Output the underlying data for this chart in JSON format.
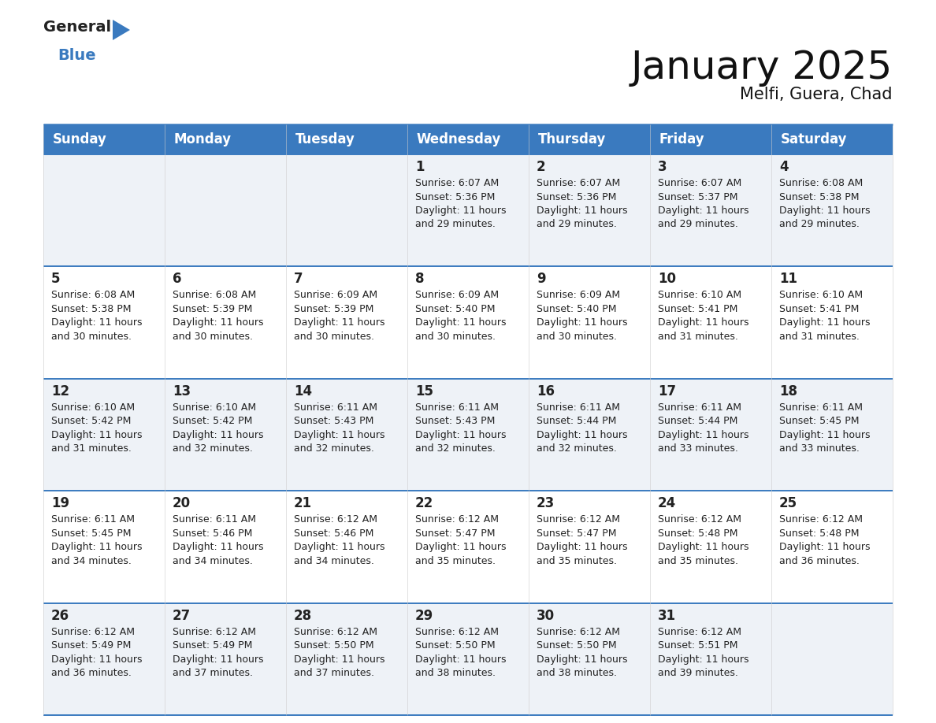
{
  "title": "January 2025",
  "subtitle": "Melfi, Guera, Chad",
  "header_color": "#3a7abf",
  "header_text_color": "#ffffff",
  "cell_bg_even": "#eef2f7",
  "cell_bg_odd": "#ffffff",
  "border_color": "#3a7abf",
  "day_names": [
    "Sunday",
    "Monday",
    "Tuesday",
    "Wednesday",
    "Thursday",
    "Friday",
    "Saturday"
  ],
  "weeks": [
    [
      {
        "day": "",
        "sunrise": "",
        "sunset": "",
        "daylight": ""
      },
      {
        "day": "",
        "sunrise": "",
        "sunset": "",
        "daylight": ""
      },
      {
        "day": "",
        "sunrise": "",
        "sunset": "",
        "daylight": ""
      },
      {
        "day": "1",
        "sunrise": "6:07 AM",
        "sunset": "5:36 PM",
        "daylight": "11 hours and 29 minutes."
      },
      {
        "day": "2",
        "sunrise": "6:07 AM",
        "sunset": "5:36 PM",
        "daylight": "11 hours and 29 minutes."
      },
      {
        "day": "3",
        "sunrise": "6:07 AM",
        "sunset": "5:37 PM",
        "daylight": "11 hours and 29 minutes."
      },
      {
        "day": "4",
        "sunrise": "6:08 AM",
        "sunset": "5:38 PM",
        "daylight": "11 hours and 29 minutes."
      }
    ],
    [
      {
        "day": "5",
        "sunrise": "6:08 AM",
        "sunset": "5:38 PM",
        "daylight": "11 hours and 30 minutes."
      },
      {
        "day": "6",
        "sunrise": "6:08 AM",
        "sunset": "5:39 PM",
        "daylight": "11 hours and 30 minutes."
      },
      {
        "day": "7",
        "sunrise": "6:09 AM",
        "sunset": "5:39 PM",
        "daylight": "11 hours and 30 minutes."
      },
      {
        "day": "8",
        "sunrise": "6:09 AM",
        "sunset": "5:40 PM",
        "daylight": "11 hours and 30 minutes."
      },
      {
        "day": "9",
        "sunrise": "6:09 AM",
        "sunset": "5:40 PM",
        "daylight": "11 hours and 30 minutes."
      },
      {
        "day": "10",
        "sunrise": "6:10 AM",
        "sunset": "5:41 PM",
        "daylight": "11 hours and 31 minutes."
      },
      {
        "day": "11",
        "sunrise": "6:10 AM",
        "sunset": "5:41 PM",
        "daylight": "11 hours and 31 minutes."
      }
    ],
    [
      {
        "day": "12",
        "sunrise": "6:10 AM",
        "sunset": "5:42 PM",
        "daylight": "11 hours and 31 minutes."
      },
      {
        "day": "13",
        "sunrise": "6:10 AM",
        "sunset": "5:42 PM",
        "daylight": "11 hours and 32 minutes."
      },
      {
        "day": "14",
        "sunrise": "6:11 AM",
        "sunset": "5:43 PM",
        "daylight": "11 hours and 32 minutes."
      },
      {
        "day": "15",
        "sunrise": "6:11 AM",
        "sunset": "5:43 PM",
        "daylight": "11 hours and 32 minutes."
      },
      {
        "day": "16",
        "sunrise": "6:11 AM",
        "sunset": "5:44 PM",
        "daylight": "11 hours and 32 minutes."
      },
      {
        "day": "17",
        "sunrise": "6:11 AM",
        "sunset": "5:44 PM",
        "daylight": "11 hours and 33 minutes."
      },
      {
        "day": "18",
        "sunrise": "6:11 AM",
        "sunset": "5:45 PM",
        "daylight": "11 hours and 33 minutes."
      }
    ],
    [
      {
        "day": "19",
        "sunrise": "6:11 AM",
        "sunset": "5:45 PM",
        "daylight": "11 hours and 34 minutes."
      },
      {
        "day": "20",
        "sunrise": "6:11 AM",
        "sunset": "5:46 PM",
        "daylight": "11 hours and 34 minutes."
      },
      {
        "day": "21",
        "sunrise": "6:12 AM",
        "sunset": "5:46 PM",
        "daylight": "11 hours and 34 minutes."
      },
      {
        "day": "22",
        "sunrise": "6:12 AM",
        "sunset": "5:47 PM",
        "daylight": "11 hours and 35 minutes."
      },
      {
        "day": "23",
        "sunrise": "6:12 AM",
        "sunset": "5:47 PM",
        "daylight": "11 hours and 35 minutes."
      },
      {
        "day": "24",
        "sunrise": "6:12 AM",
        "sunset": "5:48 PM",
        "daylight": "11 hours and 35 minutes."
      },
      {
        "day": "25",
        "sunrise": "6:12 AM",
        "sunset": "5:48 PM",
        "daylight": "11 hours and 36 minutes."
      }
    ],
    [
      {
        "day": "26",
        "sunrise": "6:12 AM",
        "sunset": "5:49 PM",
        "daylight": "11 hours and 36 minutes."
      },
      {
        "day": "27",
        "sunrise": "6:12 AM",
        "sunset": "5:49 PM",
        "daylight": "11 hours and 37 minutes."
      },
      {
        "day": "28",
        "sunrise": "6:12 AM",
        "sunset": "5:50 PM",
        "daylight": "11 hours and 37 minutes."
      },
      {
        "day": "29",
        "sunrise": "6:12 AM",
        "sunset": "5:50 PM",
        "daylight": "11 hours and 38 minutes."
      },
      {
        "day": "30",
        "sunrise": "6:12 AM",
        "sunset": "5:50 PM",
        "daylight": "11 hours and 38 minutes."
      },
      {
        "day": "31",
        "sunrise": "6:12 AM",
        "sunset": "5:51 PM",
        "daylight": "11 hours and 39 minutes."
      },
      {
        "day": "",
        "sunrise": "",
        "sunset": "",
        "daylight": ""
      }
    ]
  ],
  "logo_general_color": "#222222",
  "logo_blue_color": "#3a7abf",
  "title_fontsize": 36,
  "subtitle_fontsize": 15,
  "day_name_fontsize": 12,
  "day_num_fontsize": 12,
  "cell_text_fontsize": 9
}
